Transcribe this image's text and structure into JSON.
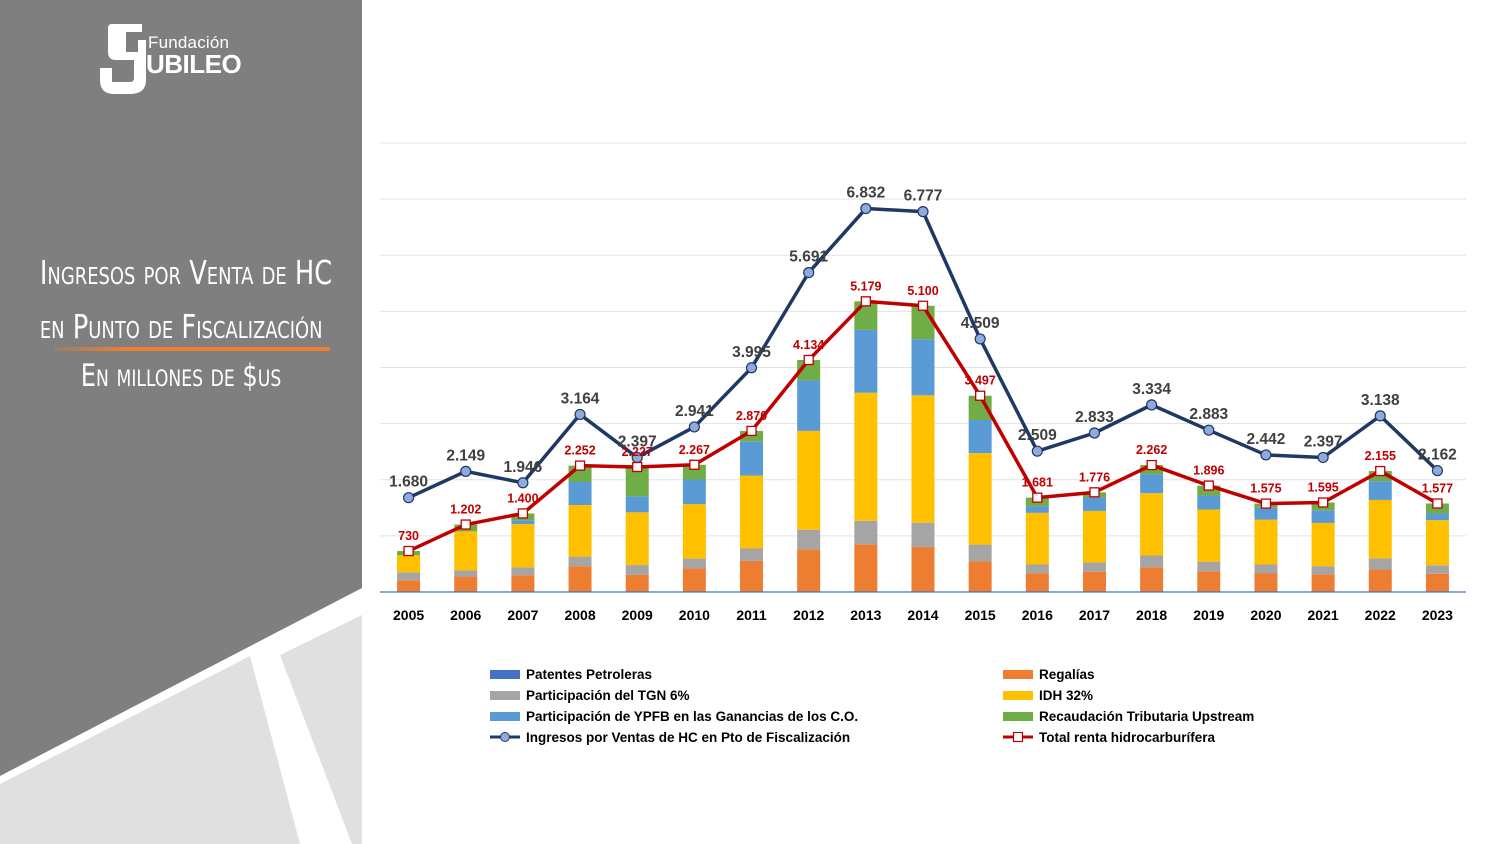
{
  "logo": {
    "top": "Fundación",
    "main": "UBILEO"
  },
  "title": {
    "line1": "Ingresos por Venta de HC",
    "line2": "en Punto de Fiscalización",
    "subtitle": "En millones de $us"
  },
  "colors": {
    "panel": "#7f7f7f",
    "accent": "#ed7d31",
    "patentes": "#4472c4",
    "regalias": "#ed7d31",
    "tgn": "#a5a5a5",
    "idh": "#ffc000",
    "ypfb": "#5b9bd5",
    "upstream": "#70ad47",
    "ingresos": "#1f3864",
    "total": "#c00000"
  },
  "chart_data": {
    "type": "bar",
    "stacked": true,
    "ylim": [
      0,
      8000
    ],
    "grid": true,
    "legend_position": "bottom",
    "categories": [
      "2005",
      "2006",
      "2007",
      "2008",
      "2009",
      "2010",
      "2011",
      "2012",
      "2013",
      "2014",
      "2015",
      "2016",
      "2017",
      "2018",
      "2019",
      "2020",
      "2021",
      "2022",
      "2023"
    ],
    "series": [
      {
        "name": "Patentes Petroleras",
        "kind": "bar",
        "values": [
          5,
          5,
          5,
          5,
          5,
          5,
          5,
          5,
          5,
          5,
          5,
          5,
          5,
          5,
          5,
          5,
          5,
          5,
          5
        ]
      },
      {
        "name": "Regalías",
        "kind": "bar",
        "values": [
          205,
          270,
          295,
          455,
          300,
          415,
          550,
          755,
          845,
          800,
          540,
          330,
          355,
          435,
          365,
          325,
          310,
          395,
          320
        ]
      },
      {
        "name": "Participación del TGN 6%",
        "kind": "bar",
        "values": [
          140,
          110,
          140,
          170,
          175,
          175,
          220,
          350,
          420,
          430,
          300,
          155,
          165,
          210,
          170,
          160,
          145,
          200,
          150
        ]
      },
      {
        "name": "IDH 32%",
        "kind": "bar",
        "values": [
          305,
          695,
          770,
          920,
          940,
          970,
          1300,
          1760,
          2280,
          2270,
          1630,
          920,
          920,
          1110,
          930,
          800,
          770,
          1040,
          805
        ]
      },
      {
        "name": "Participación de YPFB en las Ganancias de los C.O.",
        "kind": "bar",
        "values": [
          0,
          0,
          70,
          410,
          285,
          440,
          610,
          900,
          1120,
          1000,
          590,
          120,
          240,
          340,
          250,
          210,
          225,
          335,
          120
        ]
      },
      {
        "name": "Recaudación Tributaria Upstream",
        "kind": "bar",
        "values": [
          75,
          122,
          120,
          292,
          522,
          262,
          185,
          364,
          509,
          595,
          432,
          151,
          91,
          162,
          176,
          75,
          140,
          180,
          177
        ]
      },
      {
        "name": "Ingresos por Ventas de HC en Pto de Fiscalización",
        "kind": "line",
        "values": [
          1680,
          2149,
          1946,
          3164,
          2397,
          2941,
          3995,
          5691,
          6832,
          6777,
          4509,
          2509,
          2833,
          3334,
          2883,
          2442,
          2397,
          3138,
          2162
        ],
        "labels": [
          "1.680",
          "2.149",
          "1.946",
          "3.164",
          "2.397",
          "2.941",
          "3.995",
          "5.691",
          "6.832",
          "6.777",
          "4.509",
          "2.509",
          "2.833",
          "3.334",
          "2.883",
          "2.442",
          "2.397",
          "3.138",
          "2.162"
        ]
      },
      {
        "name": "Total renta hidrocarburífera",
        "kind": "line",
        "values": [
          730,
          1202,
          1400,
          2252,
          2227,
          2267,
          2870,
          4134,
          5179,
          5100,
          3497,
          1681,
          1776,
          2262,
          1896,
          1575,
          1595,
          2155,
          1577
        ],
        "labels": [
          "730",
          "1.202",
          "1.400",
          "2.252",
          "2.227",
          "2.267",
          "2.870",
          "4.134",
          "5.179",
          "5.100",
          "3.497",
          "1.681",
          "1.776",
          "2.262",
          "1.896",
          "1.575",
          "1.595",
          "2.155",
          "1.577"
        ]
      }
    ]
  }
}
